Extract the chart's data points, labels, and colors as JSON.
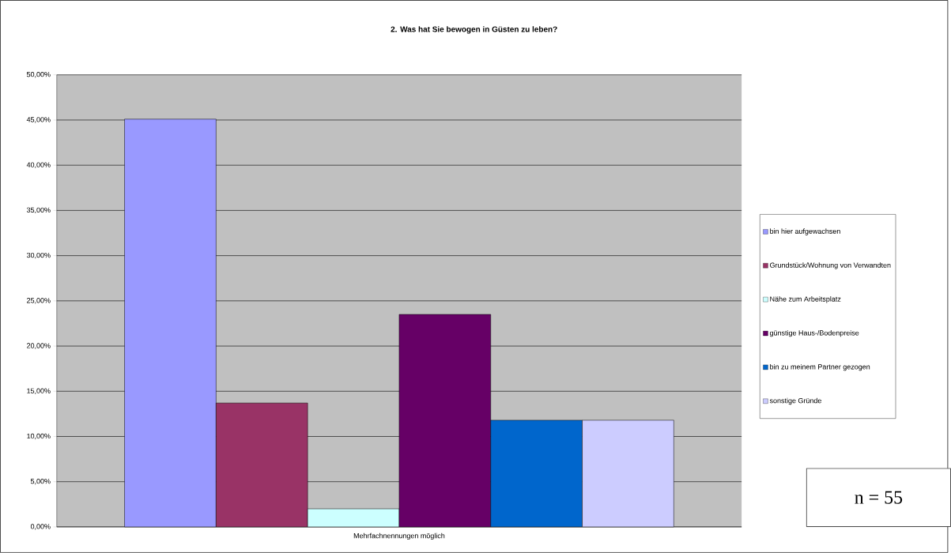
{
  "chart_data": {
    "type": "bar",
    "title": "2. Was hat Sie bewogen in Güsten zu leben?",
    "categories": [
      "Mehrfachnennungen möglich"
    ],
    "series": [
      {
        "name": "bin hier aufgewachsen",
        "color": "#9999ff",
        "values": [
          45.1
        ]
      },
      {
        "name": "Grundstück/Wohnung von Verwandten",
        "color": "#993366",
        "values": [
          13.7
        ]
      },
      {
        "name": "Nähe zum Arbeitsplatz",
        "color": "#ccffff",
        "values": [
          2.0
        ]
      },
      {
        "name": "günstige Haus-/Bodenpreise",
        "color": "#660066",
        "values": [
          23.5
        ]
      },
      {
        "name": "bin zu meinem Partner gezogen",
        "color": "#0066cc",
        "values": [
          11.8
        ]
      },
      {
        "name": "sonstige Gründe",
        "color": "#ccccff",
        "values": [
          11.8
        ]
      }
    ],
    "ylim": [
      0,
      50
    ],
    "yticks": [
      {
        "value": 0,
        "label": "0,00%"
      },
      {
        "value": 5,
        "label": "5,00%"
      },
      {
        "value": 10,
        "label": "10,00%"
      },
      {
        "value": 15,
        "label": "15,00%"
      },
      {
        "value": 20,
        "label": "20,00%"
      },
      {
        "value": 25,
        "label": "25,00%"
      },
      {
        "value": 30,
        "label": "30,00%"
      },
      {
        "value": 35,
        "label": "35,00%"
      },
      {
        "value": 40,
        "label": "40,00%"
      },
      {
        "value": 45,
        "label": "45,00%"
      },
      {
        "value": 50,
        "label": "50,00%"
      }
    ],
    "grid": "y",
    "legend": "right",
    "annotations": [
      "n = 55"
    ]
  }
}
